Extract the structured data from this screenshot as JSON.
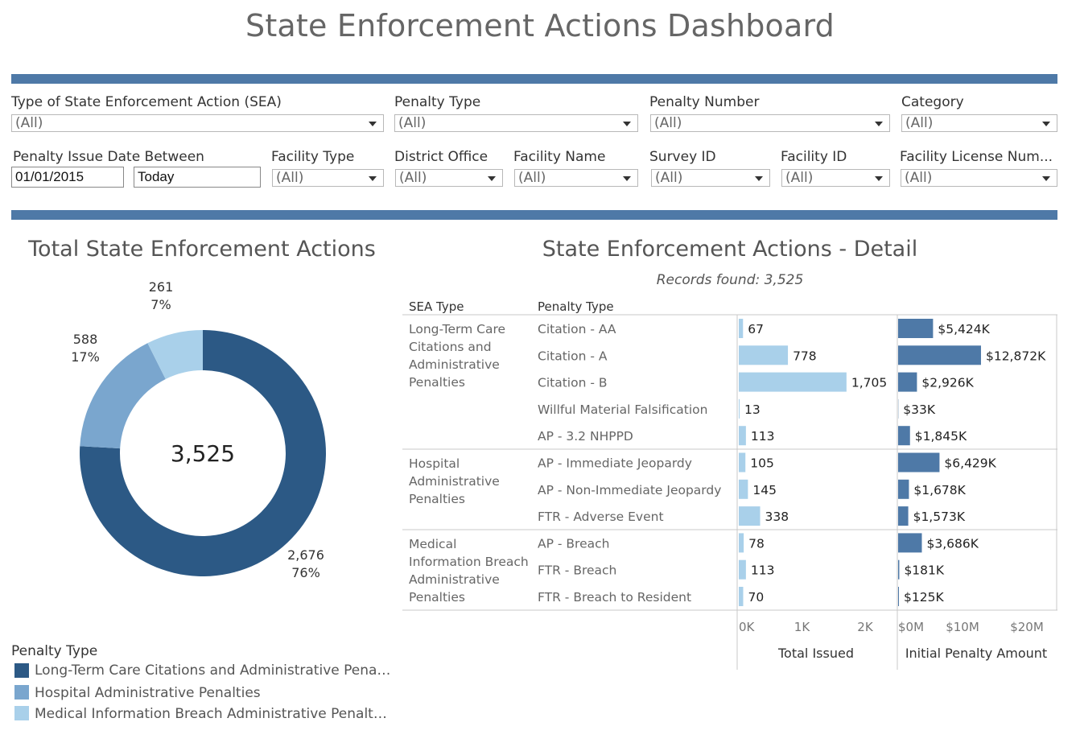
{
  "page_title": "State Enforcement Actions Dashboard",
  "filters": {
    "row1": [
      {
        "label": "Type of State Enforcement Action (SEA)",
        "value": "(All)"
      },
      {
        "label": "Penalty Type",
        "value": "(All)"
      },
      {
        "label": "Penalty Number",
        "value": "(All)"
      },
      {
        "label": "Category",
        "value": "(All)"
      }
    ],
    "date": {
      "label": "Penalty Issue Date Between",
      "start": "01/01/2015",
      "end": "Today"
    },
    "row2": [
      {
        "label": "Facility Type",
        "value": "(All)"
      },
      {
        "label": "District Office",
        "value": "(All)"
      },
      {
        "label": "Facility Name",
        "value": "(All)"
      },
      {
        "label": "Survey ID",
        "value": "(All)"
      },
      {
        "label": "Facility ID",
        "value": "(All)"
      },
      {
        "label": "Facility License Num...",
        "value": "(All)"
      }
    ]
  },
  "donut": {
    "title": "Total State Enforcement Actions",
    "center_total": "3,525",
    "labels": [
      {
        "count": "2,676",
        "pct": "76%"
      },
      {
        "count": "588",
        "pct": "17%"
      },
      {
        "count": "261",
        "pct": "7%"
      }
    ]
  },
  "legend": {
    "title": "Penalty Type",
    "items": [
      "Long-Term Care Citations and Administrative Pena…",
      "Hospital Administrative Penalties",
      "Medical Information Breach Administrative Penalt…"
    ]
  },
  "detail": {
    "title": "State Enforcement Actions - Detail",
    "records_found": "Records found: 3,525",
    "col_sea": "SEA Type",
    "col_penalty": "Penalty Type",
    "axis1_title": "Total Issued",
    "axis2_title": "Initial Penalty Amount",
    "axis1_ticks": [
      "0K",
      "1K",
      "2K"
    ],
    "axis2_ticks": [
      "$0M",
      "$10M",
      "$20M"
    ],
    "groups": [
      {
        "sea_type": [
          "Long-Term Care",
          "Citations and",
          "Administrative",
          "Penalties"
        ]
      },
      {
        "sea_type": [
          "Hospital",
          "Administrative",
          "Penalties"
        ]
      },
      {
        "sea_type": [
          "Medical",
          "Information Breach",
          "Administrative",
          "Penalties"
        ]
      }
    ],
    "rows": [
      {
        "penalty_type": "Citation - AA",
        "issued_label": "67",
        "amount_label": "$5,424K"
      },
      {
        "penalty_type": "Citation - A",
        "issued_label": "778",
        "amount_label": "$12,872K"
      },
      {
        "penalty_type": "Citation - B",
        "issued_label": "1,705",
        "amount_label": "$2,926K"
      },
      {
        "penalty_type": "Willful Material Falsification",
        "issued_label": "13",
        "amount_label": "$33K"
      },
      {
        "penalty_type": "AP - 3.2 NHPPD",
        "issued_label": "113",
        "amount_label": "$1,845K"
      },
      {
        "penalty_type": "AP - Immediate Jeopardy",
        "issued_label": "105",
        "amount_label": "$6,429K"
      },
      {
        "penalty_type": "AP - Non-Immediate Jeopardy",
        "issued_label": "145",
        "amount_label": "$1,678K"
      },
      {
        "penalty_type": "FTR - Adverse Event",
        "issued_label": "338",
        "amount_label": "$1,573K"
      },
      {
        "penalty_type": "AP - Breach",
        "issued_label": "78",
        "amount_label": "$3,686K"
      },
      {
        "penalty_type": "FTR - Breach",
        "issued_label": "113",
        "amount_label": "$181K"
      },
      {
        "penalty_type": "FTR - Breach to Resident",
        "issued_label": "70",
        "amount_label": "$125K"
      }
    ]
  },
  "colors": {
    "band": "#4e79a7",
    "dark": "#2c5985",
    "medium": "#7aa6ce",
    "light": "#a9d0ea",
    "amount_bar": "#4e79a7"
  },
  "chart_data": [
    {
      "type": "pie",
      "title": "Total State Enforcement Actions",
      "categories": [
        "Long-Term Care Citations and Administrative Penalties",
        "Hospital Administrative Penalties",
        "Medical Information Breach Administrative Penalties"
      ],
      "values": [
        2676,
        588,
        261
      ],
      "percent": [
        76,
        17,
        7
      ],
      "total": 3525,
      "legend": "bottom-left"
    },
    {
      "type": "bar",
      "orientation": "horizontal",
      "title": "State Enforcement Actions - Detail",
      "xlabel": "Total Issued",
      "categories": [
        "Citation - AA",
        "Citation - A",
        "Citation - B",
        "Willful Material Falsification",
        "AP - 3.2 NHPPD",
        "AP - Immediate Jeopardy",
        "AP - Non-Immediate Jeopardy",
        "FTR - Adverse Event",
        "AP - Breach",
        "FTR - Breach",
        "FTR - Breach to Resident"
      ],
      "group": [
        0,
        0,
        0,
        0,
        0,
        1,
        1,
        1,
        2,
        2,
        2
      ],
      "values": [
        67,
        778,
        1705,
        13,
        113,
        105,
        145,
        338,
        78,
        113,
        70
      ],
      "xlim": [
        0,
        2300
      ],
      "grid": false
    },
    {
      "type": "bar",
      "orientation": "horizontal",
      "title": "",
      "xlabel": "Initial Penalty Amount",
      "unit": "$K",
      "categories": [
        "Citation - AA",
        "Citation - A",
        "Citation - B",
        "Willful Material Falsification",
        "AP - 3.2 NHPPD",
        "AP - Immediate Jeopardy",
        "AP - Non-Immediate Jeopardy",
        "FTR - Adverse Event",
        "AP - Breach",
        "FTR - Breach",
        "FTR - Breach to Resident"
      ],
      "values": [
        5424,
        12872,
        2926,
        33,
        1845,
        6429,
        1678,
        1573,
        3686,
        181,
        125
      ],
      "xlim": [
        0,
        23000
      ],
      "grid": false
    }
  ]
}
